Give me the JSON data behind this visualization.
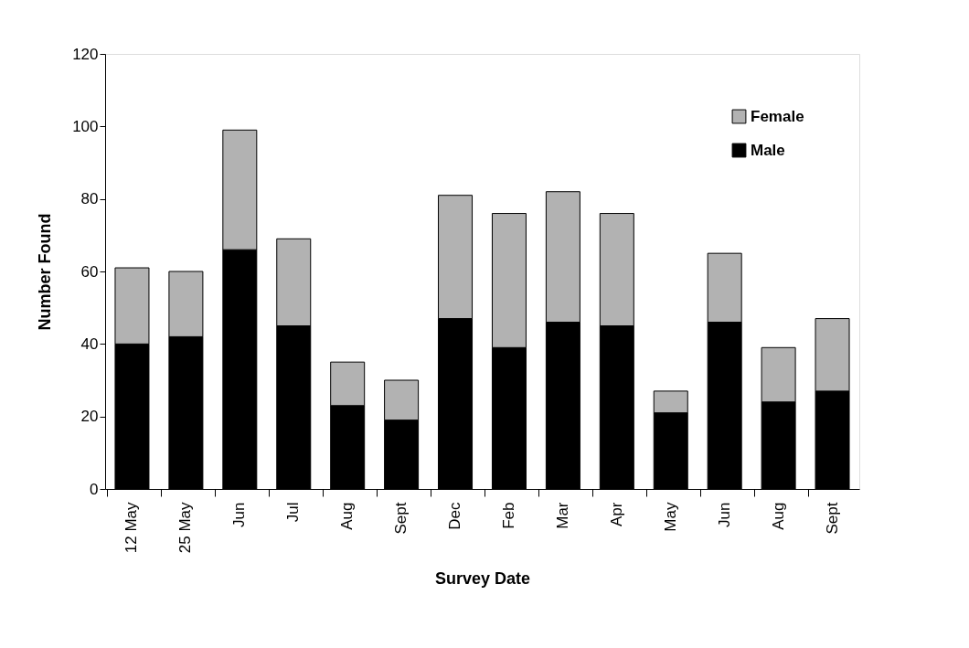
{
  "chart_data": {
    "type": "bar",
    "stacked": true,
    "xlabel": "Survey Date",
    "ylabel": "Number Found",
    "categories": [
      "12 May",
      "25 May",
      "Jun",
      "Jul",
      "Aug",
      "Sept",
      "Dec",
      "Feb",
      "Mar",
      "Apr",
      "May",
      "Jun",
      "Aug",
      "Sept"
    ],
    "series": [
      {
        "name": "Male",
        "color": "#000000",
        "values": [
          40,
          42,
          66,
          45,
          23,
          19,
          47,
          39,
          46,
          45,
          21,
          46,
          24,
          27
        ]
      },
      {
        "name": "Female",
        "color": "#b2b2b2",
        "values": [
          21,
          18,
          33,
          24,
          12,
          11,
          34,
          37,
          36,
          31,
          6,
          19,
          15,
          20
        ]
      }
    ],
    "ylim": [
      0,
      120
    ],
    "yticks": [
      0,
      20,
      40,
      60,
      80,
      100,
      120
    ],
    "grid": false,
    "legend": "top right"
  }
}
